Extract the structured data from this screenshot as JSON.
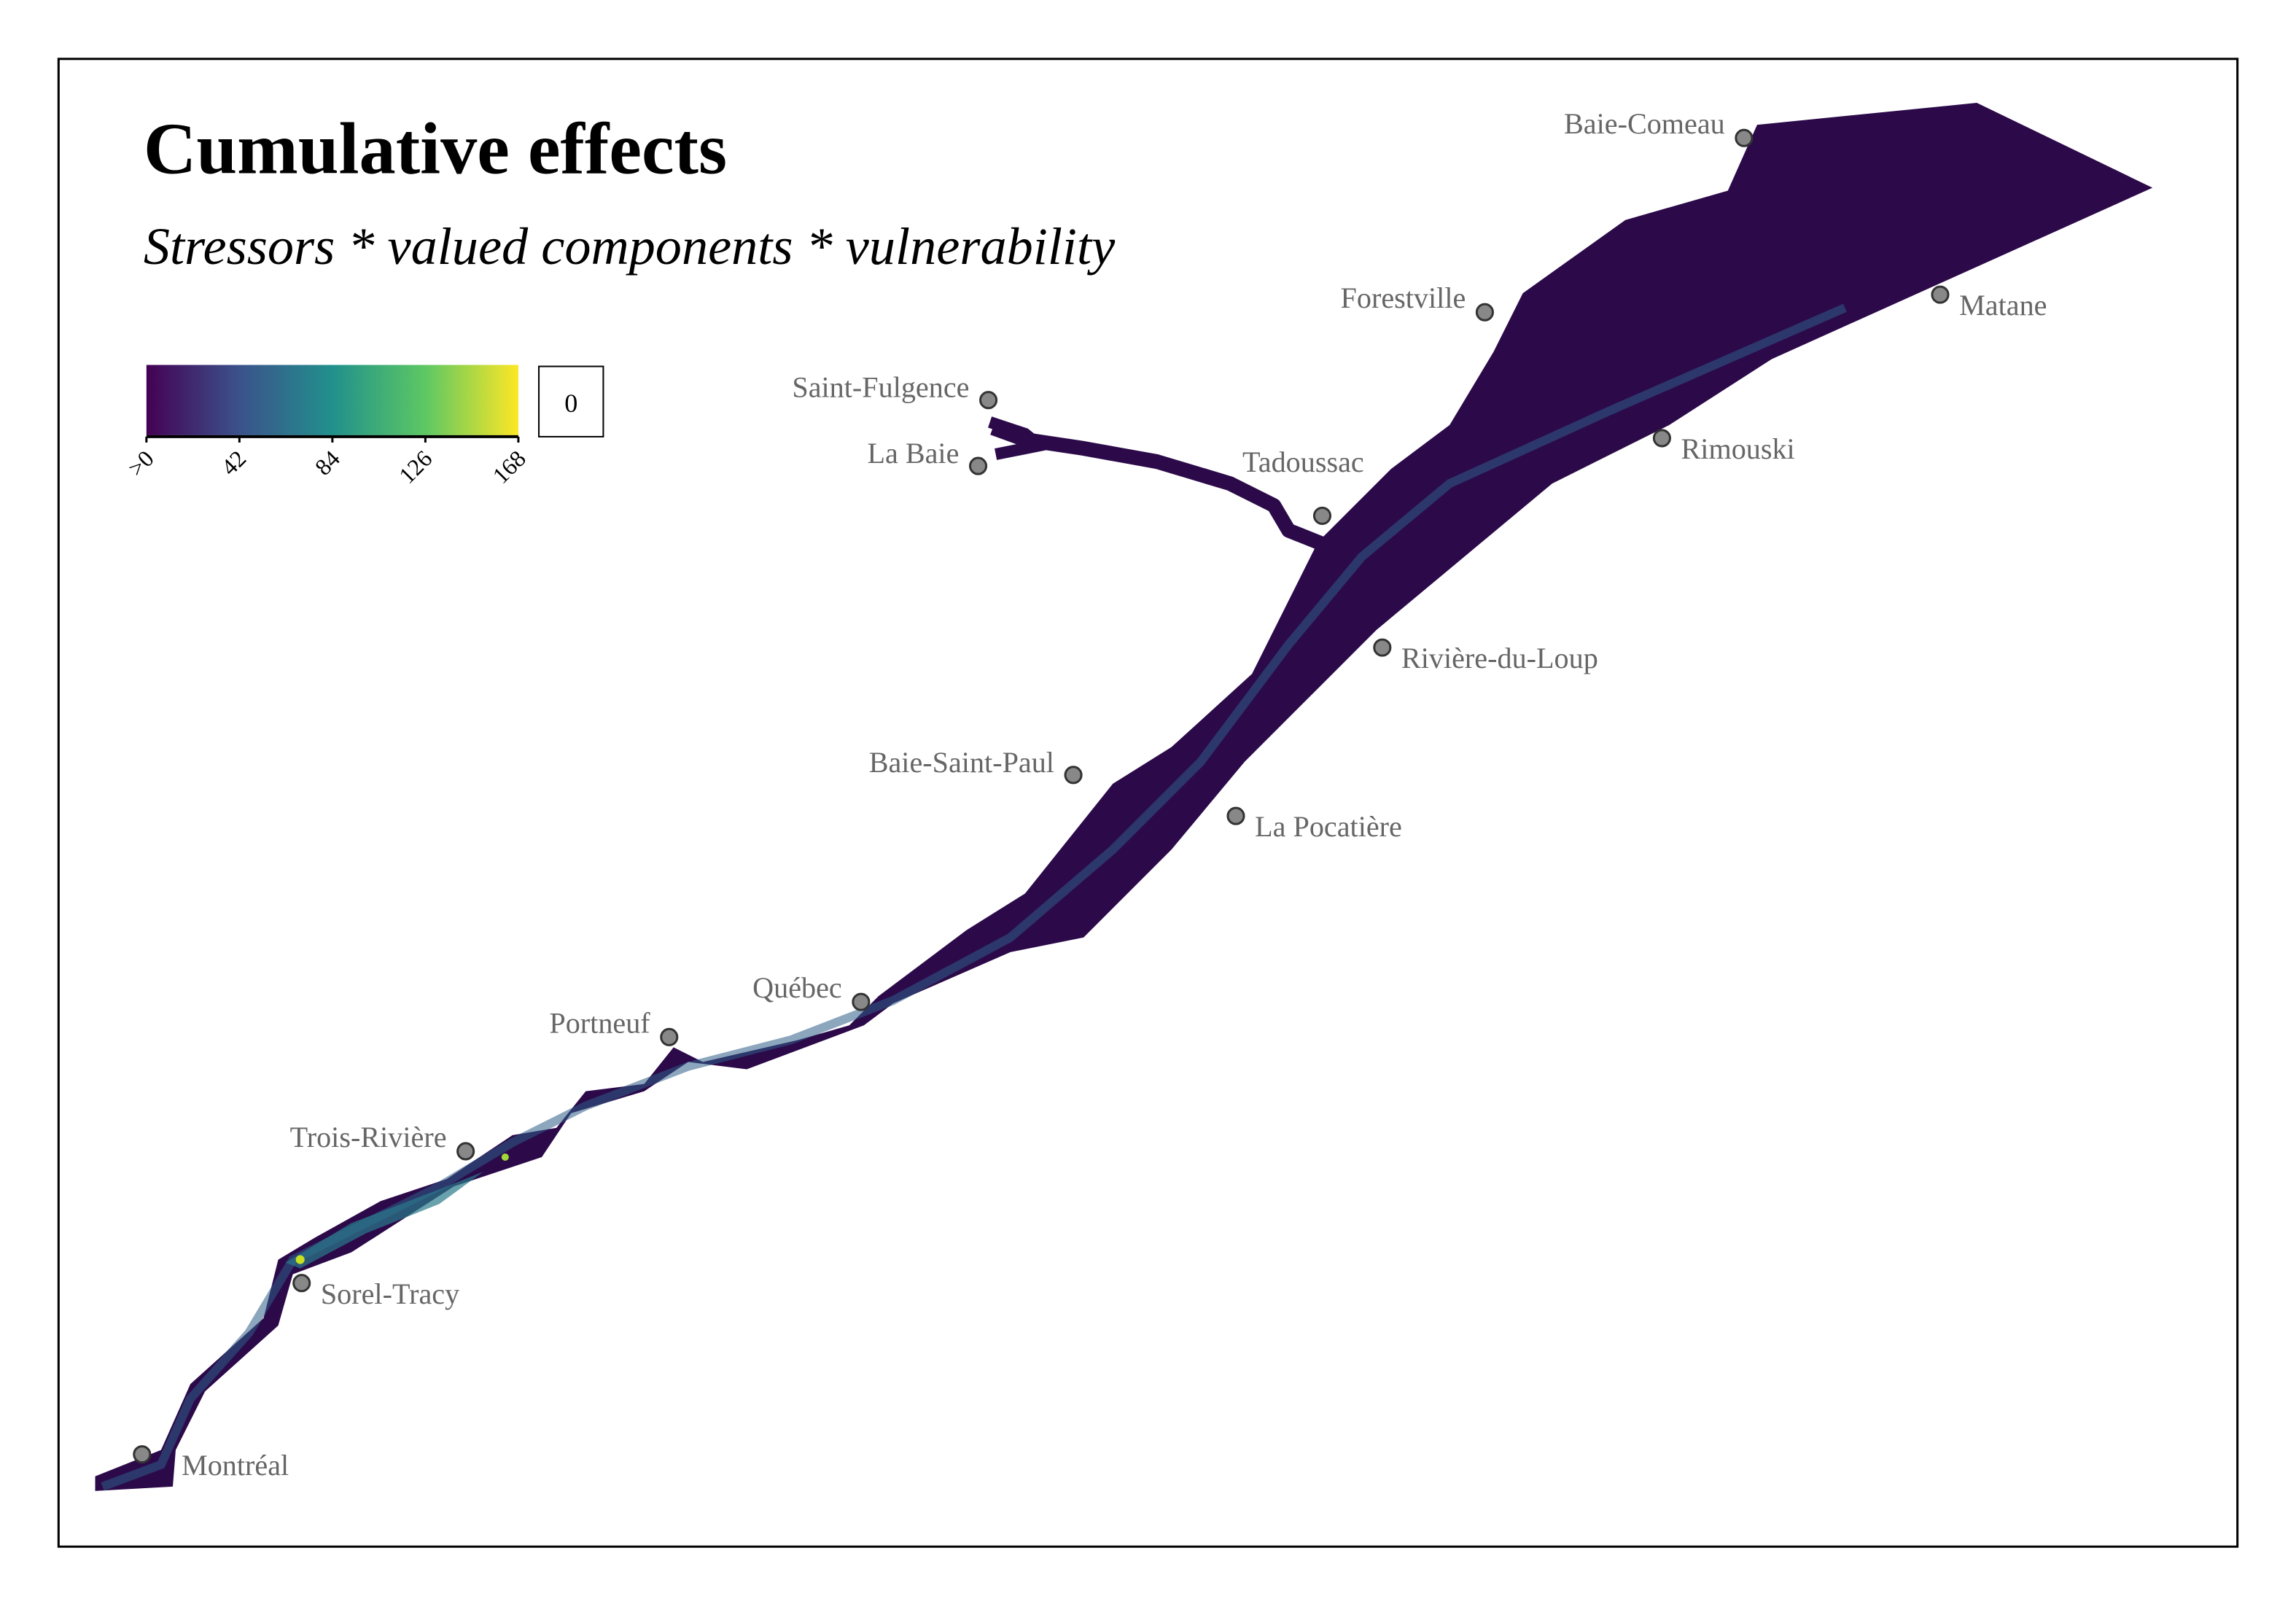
{
  "title": "Cumulative effects",
  "subtitle": "Stressors * valued components * vulnerability",
  "legend": {
    "ticks": [
      ">0",
      "42",
      "84",
      "126",
      "168"
    ],
    "range": [
      0,
      168
    ],
    "zero_label": "0",
    "palette": "viridis",
    "colors": [
      "#440154",
      "#3b528b",
      "#21908c",
      "#5dc863",
      "#fde725"
    ]
  },
  "cities": [
    {
      "name": "Baie-Comeau"
    },
    {
      "name": "Matane"
    },
    {
      "name": "Forestville"
    },
    {
      "name": "Saint-Fulgence"
    },
    {
      "name": "La Baie"
    },
    {
      "name": "Tadoussac"
    },
    {
      "name": "Rimouski"
    },
    {
      "name": "Rivière-du-Loup"
    },
    {
      "name": "Baie-Saint-Paul"
    },
    {
      "name": "La Pocatière"
    },
    {
      "name": "Québec"
    },
    {
      "name": "Portneuf"
    },
    {
      "name": "Trois-Rivière"
    },
    {
      "name": "Sorel-Tracy"
    },
    {
      "name": "Montréal"
    }
  ],
  "colors": {
    "water_low": "#2c0a4a",
    "city_marker": "#888888",
    "city_label": "#666666"
  }
}
